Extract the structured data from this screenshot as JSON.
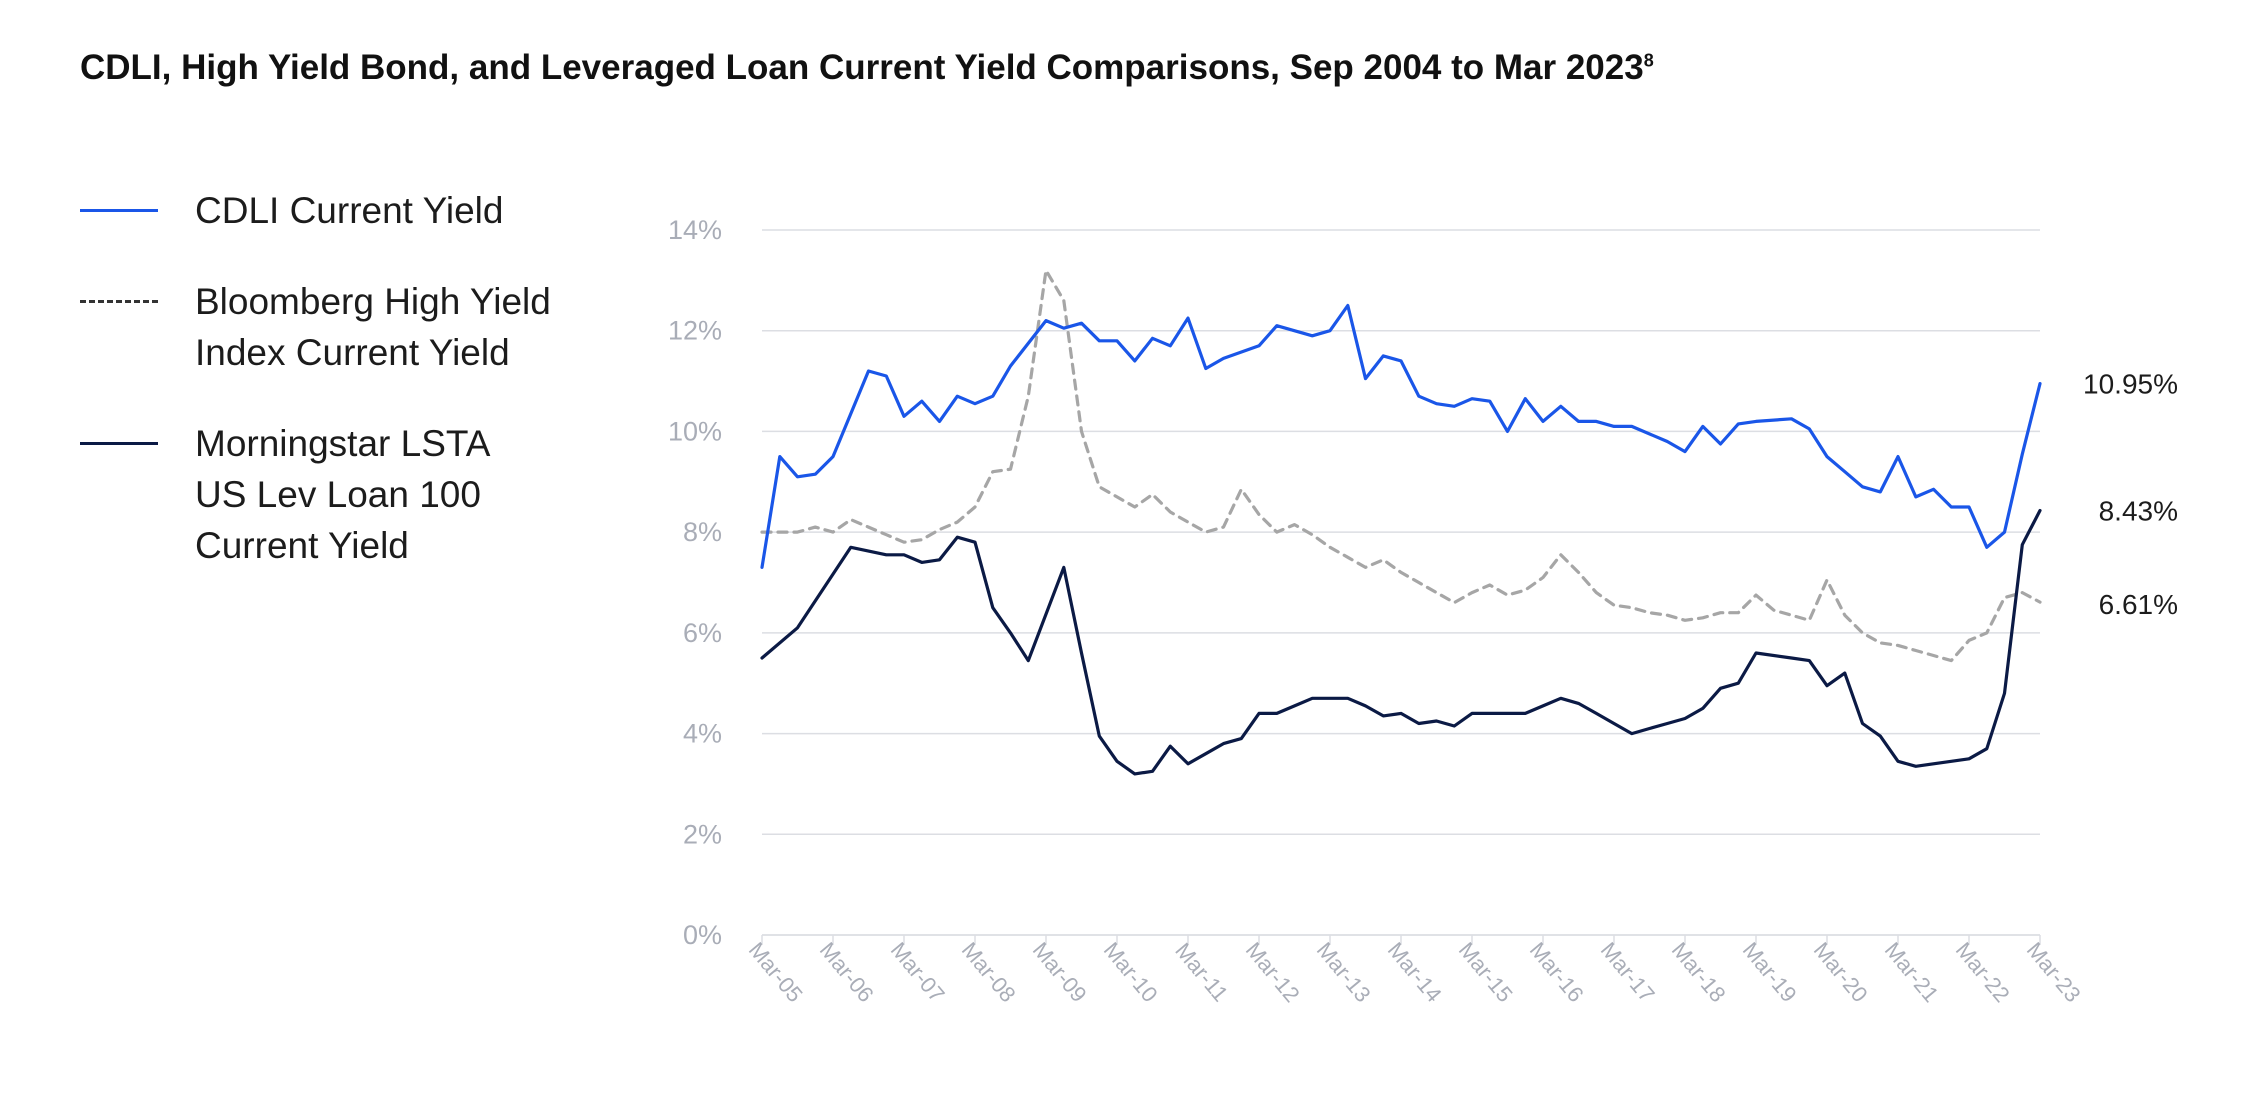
{
  "chart_data": {
    "type": "line",
    "title": "CDLI, High Yield Bond, and Leveraged Loan Current Yield Comparisons, Sep 2004 to Mar 2023",
    "title_footnote": "8",
    "ylim": [
      0,
      14
    ],
    "yticks": [
      0,
      2,
      4,
      6,
      8,
      10,
      12,
      14
    ],
    "ytick_labels": [
      "0%",
      "2%",
      "4%",
      "6%",
      "8%",
      "10%",
      "12%",
      "14%"
    ],
    "xlim": [
      2005.0,
      2023.0
    ],
    "xticks": [
      2005,
      2006,
      2007,
      2008,
      2009,
      2010,
      2011,
      2012,
      2013,
      2014,
      2015,
      2016,
      2017,
      2018,
      2019,
      2020,
      2021,
      2022,
      2023
    ],
    "xtick_labels": [
      "Mar-05",
      "Mar-06",
      "Mar-07",
      "Mar-08",
      "Mar-09",
      "Mar-10",
      "Mar-11",
      "Mar-12",
      "Mar-13",
      "Mar-14",
      "Mar-15",
      "Mar-16",
      "Mar-17",
      "Mar-18",
      "Mar-19",
      "Mar-20",
      "Mar-21",
      "Mar-22",
      "Mar-23"
    ],
    "grid": true,
    "legend_position": "left",
    "colors": {
      "cdli": "#1a56e8",
      "hy": "#a6a6a6",
      "loan": "#0b1a45",
      "grid": "#dcdee3"
    },
    "series": [
      {
        "name": "CDLI Current Yield",
        "style": "solid",
        "end_label": "10.95%",
        "x": [
          2005.0,
          2005.25,
          2005.5,
          2005.75,
          2006.0,
          2006.5,
          2006.75,
          2007.0,
          2007.25,
          2007.5,
          2007.75,
          2008.0,
          2008.25,
          2008.5,
          2009.0,
          2009.25,
          2009.5,
          2009.75,
          2010.0,
          2010.25,
          2010.5,
          2010.75,
          2011.0,
          2011.25,
          2011.5,
          2012.0,
          2012.25,
          2012.75,
          2013.0,
          2013.25,
          2013.5,
          2013.75,
          2014.0,
          2014.25,
          2014.5,
          2014.75,
          2015.0,
          2015.25,
          2015.5,
          2015.75,
          2016.0,
          2016.25,
          2016.5,
          2016.75,
          2017.0,
          2017.25,
          2017.75,
          2018.0,
          2018.25,
          2018.5,
          2018.75,
          2019.0,
          2019.5,
          2019.75,
          2020.0,
          2020.25,
          2020.5,
          2020.75,
          2021.0,
          2021.25,
          2021.5,
          2021.75,
          2022.0,
          2022.25,
          2022.5,
          2022.75,
          2023.0
        ],
        "values": [
          7.3,
          9.5,
          9.1,
          9.15,
          9.5,
          11.2,
          11.1,
          10.3,
          10.6,
          10.2,
          10.7,
          10.55,
          10.7,
          11.3,
          12.2,
          12.05,
          12.15,
          11.8,
          11.8,
          11.4,
          11.85,
          11.7,
          12.25,
          11.25,
          11.45,
          11.7,
          12.1,
          11.9,
          12.0,
          12.5,
          11.05,
          11.5,
          11.4,
          10.7,
          10.55,
          10.5,
          10.65,
          10.6,
          10.0,
          10.65,
          10.2,
          10.5,
          10.2,
          10.2,
          10.1,
          10.1,
          9.8,
          9.6,
          10.1,
          9.75,
          10.15,
          10.2,
          10.25,
          10.05,
          9.5,
          9.2,
          8.9,
          8.8,
          9.5,
          8.7,
          8.85,
          8.5,
          8.5,
          7.7,
          8.0,
          9.55,
          10.95
        ]
      },
      {
        "name": "Bloomberg High Yield\nIndex Current Yield",
        "style": "dashed",
        "end_label": "6.61%",
        "x": [
          2005.0,
          2005.5,
          2005.75,
          2006.0,
          2006.25,
          2006.5,
          2006.75,
          2007.0,
          2007.25,
          2007.5,
          2007.75,
          2008.0,
          2008.25,
          2008.5,
          2008.75,
          2009.0,
          2009.25,
          2009.5,
          2009.75,
          2010.0,
          2010.25,
          2010.5,
          2010.75,
          2011.0,
          2011.25,
          2011.5,
          2011.75,
          2012.0,
          2012.25,
          2012.5,
          2012.75,
          2013.0,
          2013.25,
          2013.5,
          2013.75,
          2014.0,
          2014.25,
          2014.5,
          2014.75,
          2015.0,
          2015.25,
          2015.5,
          2015.75,
          2016.0,
          2016.25,
          2016.5,
          2016.75,
          2017.0,
          2017.25,
          2017.5,
          2017.75,
          2018.0,
          2018.25,
          2018.5,
          2018.75,
          2019.0,
          2019.25,
          2019.5,
          2019.75,
          2020.0,
          2020.25,
          2020.5,
          2020.75,
          2021.0,
          2021.25,
          2021.5,
          2021.75,
          2022.0,
          2022.25,
          2022.5,
          2022.75,
          2023.0
        ],
        "values": [
          8.0,
          8.0,
          8.1,
          8.0,
          8.25,
          8.1,
          7.95,
          7.8,
          7.85,
          8.05,
          8.2,
          8.5,
          9.2,
          9.25,
          10.7,
          13.2,
          12.6,
          10.0,
          8.9,
          8.7,
          8.5,
          8.75,
          8.4,
          8.2,
          8.0,
          8.1,
          8.85,
          8.35,
          8.0,
          8.15,
          7.95,
          7.7,
          7.5,
          7.3,
          7.45,
          7.2,
          7.0,
          6.8,
          6.6,
          6.8,
          6.95,
          6.75,
          6.85,
          7.1,
          7.55,
          7.2,
          6.8,
          6.55,
          6.5,
          6.4,
          6.35,
          6.25,
          6.3,
          6.4,
          6.4,
          6.75,
          6.45,
          6.35,
          6.25,
          7.05,
          6.35,
          6.0,
          5.8,
          5.75,
          5.65,
          5.55,
          5.45,
          5.85,
          6.0,
          6.7,
          6.8,
          6.61
        ]
      },
      {
        "name": "Morningstar LSTA\nUS Lev Loan 100\nCurrent Yield",
        "style": "solid",
        "end_label": "8.43%",
        "x": [
          2005.0,
          2005.5,
          2006.25,
          2006.75,
          2007.0,
          2007.25,
          2007.5,
          2007.75,
          2008.0,
          2008.25,
          2008.5,
          2008.75,
          2009.25,
          2009.5,
          2009.75,
          2010.0,
          2010.25,
          2010.5,
          2010.75,
          2011.0,
          2011.25,
          2011.5,
          2011.75,
          2012.0,
          2012.25,
          2012.5,
          2012.75,
          2013.0,
          2013.25,
          2013.5,
          2013.75,
          2014.0,
          2014.25,
          2014.5,
          2014.75,
          2015.0,
          2015.5,
          2015.75,
          2016.0,
          2016.25,
          2016.5,
          2016.75,
          2017.0,
          2017.25,
          2017.5,
          2017.75,
          2018.0,
          2018.25,
          2018.5,
          2018.75,
          2019.0,
          2019.5,
          2019.75,
          2020.0,
          2020.25,
          2020.5,
          2020.75,
          2021.0,
          2021.25,
          2021.75,
          2022.0,
          2022.25,
          2022.5,
          2022.75,
          2023.0
        ],
        "values": [
          5.5,
          6.1,
          7.7,
          7.55,
          7.55,
          7.4,
          7.45,
          7.9,
          7.8,
          6.5,
          6.0,
          5.45,
          7.3,
          5.6,
          3.95,
          3.45,
          3.2,
          3.25,
          3.75,
          3.4,
          3.6,
          3.8,
          3.9,
          4.4,
          4.4,
          4.55,
          4.7,
          4.7,
          4.7,
          4.55,
          4.35,
          4.4,
          4.2,
          4.25,
          4.15,
          4.4,
          4.4,
          4.4,
          4.55,
          4.7,
          4.6,
          4.4,
          4.2,
          4.0,
          4.1,
          4.2,
          4.3,
          4.5,
          4.9,
          5.0,
          5.6,
          5.5,
          5.45,
          4.95,
          5.2,
          4.2,
          3.95,
          3.45,
          3.35,
          3.45,
          3.5,
          3.7,
          4.8,
          7.75,
          8.43
        ]
      }
    ]
  }
}
